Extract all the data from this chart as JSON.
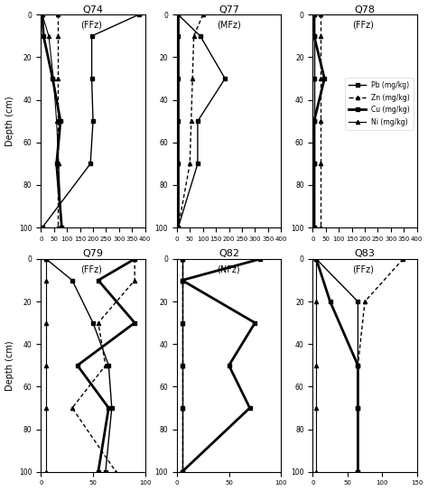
{
  "plots": [
    {
      "title": "Q74",
      "subtitle": "(FFz)",
      "xlim": [
        0,
        400
      ],
      "xticks": [
        0,
        50,
        100,
        150,
        200,
        250,
        300,
        350,
        400
      ],
      "legend": false,
      "series": {
        "Pb": {
          "depths": [
            0,
            10,
            30,
            50,
            70,
            100
          ],
          "values": [
            375,
            195,
            195,
            200,
            190,
            5
          ]
        },
        "Zn": {
          "depths": [
            0,
            10,
            30,
            50,
            70,
            100
          ],
          "values": [
            65,
            65,
            65,
            65,
            65,
            65
          ]
        },
        "Cu": {
          "depths": [
            0,
            10,
            30,
            50,
            70,
            100
          ],
          "values": [
            5,
            10,
            45,
            75,
            60,
            80
          ]
        },
        "Ni": {
          "depths": [
            0,
            10,
            30,
            50,
            70,
            100
          ],
          "values": [
            5,
            30,
            48,
            60,
            68,
            78
          ]
        }
      }
    },
    {
      "title": "Q77",
      "subtitle": "(MFz)",
      "xlim": [
        0,
        400
      ],
      "xticks": [
        0,
        50,
        100,
        150,
        200,
        250,
        300,
        350,
        400
      ],
      "legend": false,
      "series": {
        "Pb": {
          "depths": [
            0,
            10,
            30,
            50,
            70,
            100
          ],
          "values": [
            5,
            90,
            185,
            80,
            80,
            5
          ]
        },
        "Zn": {
          "depths": [
            0,
            10,
            30,
            50,
            70,
            100
          ],
          "values": [
            100,
            65,
            60,
            55,
            50,
            5
          ]
        },
        "Cu": {
          "depths": [
            0,
            10,
            30,
            50,
            70,
            100
          ],
          "values": [
            5,
            5,
            5,
            5,
            5,
            5
          ]
        },
        "Ni": {
          "depths": [
            0,
            10,
            30,
            50,
            70,
            100
          ],
          "values": [
            5,
            5,
            5,
            5,
            5,
            5
          ]
        }
      }
    },
    {
      "title": "Q78",
      "subtitle": "(FFz)",
      "xlim": [
        0,
        400
      ],
      "xticks": [
        0,
        50,
        100,
        150,
        200,
        250,
        300,
        350,
        400
      ],
      "legend": true,
      "series": {
        "Pb": {
          "depths": [
            0,
            10,
            30,
            50,
            70,
            100
          ],
          "values": [
            5,
            5,
            5,
            5,
            5,
            5
          ]
        },
        "Zn": {
          "depths": [
            0,
            10,
            30,
            50,
            70,
            100
          ],
          "values": [
            30,
            30,
            30,
            30,
            30,
            30
          ]
        },
        "Cu": {
          "depths": [
            0,
            10,
            30,
            50,
            70,
            100
          ],
          "values": [
            5,
            5,
            45,
            5,
            5,
            5
          ]
        },
        "Ni": {
          "depths": [
            0,
            10,
            30,
            50,
            70,
            100
          ],
          "values": [
            5,
            5,
            5,
            5,
            5,
            5
          ]
        }
      }
    },
    {
      "title": "Q79",
      "subtitle": "(FFz)",
      "xlim": [
        0,
        100
      ],
      "xticks": [
        0,
        50,
        100
      ],
      "legend": false,
      "series": {
        "Pb": {
          "depths": [
            0,
            10,
            30,
            50,
            70,
            100
          ],
          "values": [
            5,
            30,
            50,
            65,
            68,
            62
          ]
        },
        "Zn": {
          "depths": [
            0,
            10,
            30,
            50,
            70,
            100
          ],
          "values": [
            90,
            90,
            55,
            62,
            30,
            72
          ]
        },
        "Cu": {
          "depths": [
            0,
            10,
            30,
            50,
            70,
            100
          ],
          "values": [
            90,
            55,
            90,
            35,
            65,
            55
          ]
        },
        "Ni": {
          "depths": [
            0,
            10,
            30,
            50,
            70,
            100
          ],
          "values": [
            5,
            5,
            5,
            5,
            5,
            5
          ]
        }
      }
    },
    {
      "title": "Q82",
      "subtitle": "(NFz)",
      "xlim": [
        0,
        100
      ],
      "xticks": [
        0,
        50,
        100
      ],
      "legend": false,
      "series": {
        "Pb": {
          "depths": [
            0,
            10,
            30,
            50,
            70,
            100
          ],
          "values": [
            5,
            5,
            5,
            5,
            5,
            5
          ]
        },
        "Zn": {
          "depths": [
            0,
            10,
            30,
            50,
            70,
            100
          ],
          "values": [
            5,
            5,
            5,
            5,
            5,
            5
          ]
        },
        "Cu": {
          "depths": [
            0,
            10,
            30,
            50,
            70,
            100
          ],
          "values": [
            80,
            5,
            75,
            50,
            70,
            5
          ]
        },
        "Ni": {
          "depths": [
            0,
            10,
            30,
            50,
            70,
            100
          ],
          "values": [
            5,
            5,
            5,
            5,
            5,
            5
          ]
        }
      }
    },
    {
      "title": "Q83",
      "subtitle": "(FFz)",
      "xlim": [
        0,
        150
      ],
      "xticks": [
        0,
        50,
        100,
        150
      ],
      "legend": false,
      "series": {
        "Pb": {
          "depths": [
            0,
            20,
            50,
            70,
            100
          ],
          "values": [
            5,
            65,
            65,
            65,
            65
          ]
        },
        "Zn": {
          "depths": [
            0,
            20,
            50,
            70,
            100
          ],
          "values": [
            130,
            75,
            65,
            65,
            65
          ]
        },
        "Cu": {
          "depths": [
            0,
            20,
            50,
            70,
            100
          ],
          "values": [
            5,
            25,
            65,
            65,
            65
          ]
        },
        "Ni": {
          "depths": [
            0,
            20,
            50,
            70,
            100
          ],
          "values": [
            5,
            5,
            5,
            5,
            5
          ]
        }
      }
    }
  ],
  "ylim": [
    100,
    0
  ],
  "yticks": [
    0,
    20,
    40,
    60,
    80,
    100
  ],
  "ylabel": "Depth (cm)",
  "background": "white"
}
